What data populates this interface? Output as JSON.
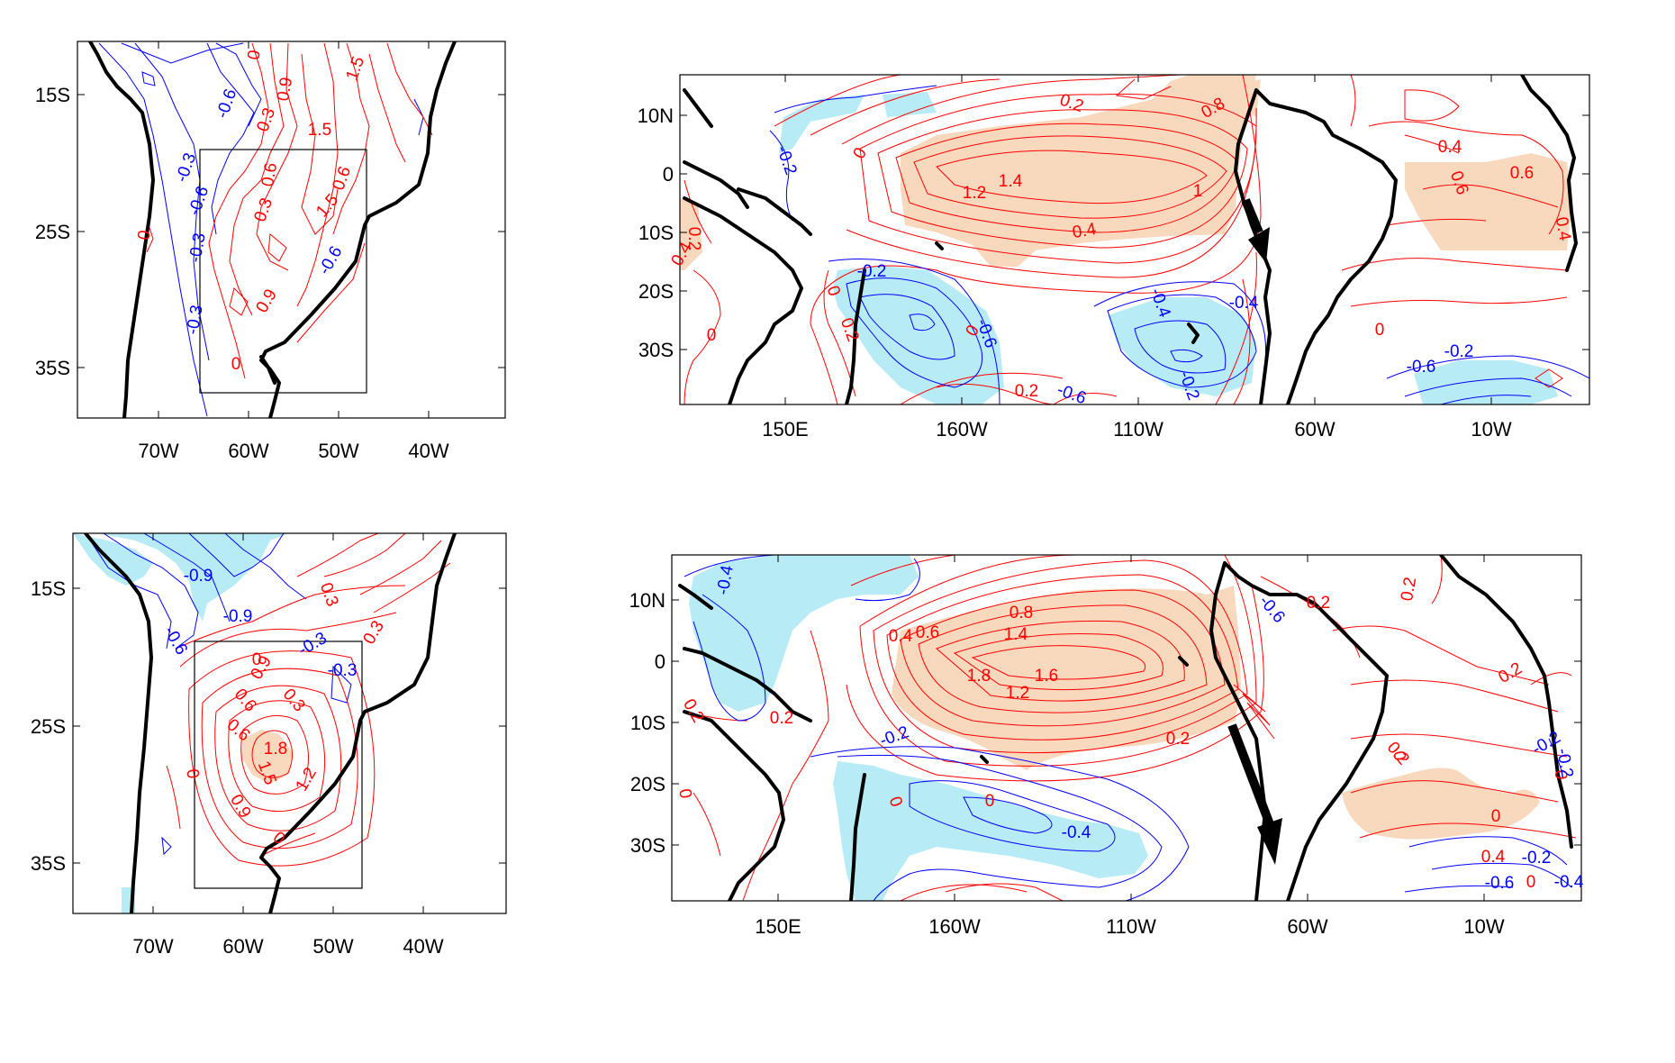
{
  "colors": {
    "positive": "#ff0000",
    "negative": "#0000ff",
    "warm_shade": "#f8d9be",
    "cool_shade": "#b7ecf7",
    "coast": "#000000"
  },
  "panels": [
    {
      "id": "sa-top",
      "ylabels": [
        "15S",
        "25S",
        "35S"
      ],
      "xlabels": [
        "70W",
        "60W",
        "50W",
        "40W"
      ],
      "labels": [
        {
          "text": "-0.6",
          "sign": "neg",
          "rot": -70
        },
        {
          "text": "0",
          "sign": "pos",
          "rot": -80
        },
        {
          "text": "1.5",
          "sign": "pos",
          "rot": -70
        },
        {
          "text": "0.9",
          "sign": "pos",
          "rot": -80
        },
        {
          "text": "-0.3",
          "sign": "neg",
          "rot": -70
        },
        {
          "text": "-0.6",
          "sign": "neg",
          "rot": -70
        },
        {
          "text": "0.3",
          "sign": "pos",
          "rot": -70
        },
        {
          "text": "1.5",
          "sign": "pos",
          "rot": 0
        },
        {
          "text": "0.6",
          "sign": "pos",
          "rot": -80
        },
        {
          "text": "0.3",
          "sign": "pos",
          "rot": -70
        },
        {
          "text": "-0.3",
          "sign": "neg",
          "rot": -80
        },
        {
          "text": "0.6",
          "sign": "pos",
          "rot": -70
        },
        {
          "text": "1.5",
          "sign": "pos",
          "rot": -50
        },
        {
          "text": "0",
          "sign": "pos",
          "rot": -80
        },
        {
          "text": "-0.6",
          "sign": "neg",
          "rot": -60
        },
        {
          "text": "0.9",
          "sign": "pos",
          "rot": -60
        },
        {
          "text": "-0.3",
          "sign": "neg",
          "rot": -80
        },
        {
          "text": "0",
          "sign": "pos",
          "rot": 0
        }
      ]
    },
    {
      "id": "pac-top",
      "ylabels": [
        "10N",
        "0",
        "10S",
        "20S",
        "30S"
      ],
      "xlabels": [
        "150E",
        "160W",
        "110W",
        "60W",
        "10W"
      ],
      "labels": [
        {
          "text": "-0.2",
          "sign": "neg",
          "rot": 70
        },
        {
          "text": "0",
          "sign": "pos",
          "rot": -60
        },
        {
          "text": "0.2",
          "sign": "pos",
          "rot": 20
        },
        {
          "text": "1.2",
          "sign": "pos",
          "rot": 0
        },
        {
          "text": "1.4",
          "sign": "pos",
          "rot": 0
        },
        {
          "text": "1",
          "sign": "pos",
          "rot": 0
        },
        {
          "text": "0.4",
          "sign": "pos",
          "rot": -10
        },
        {
          "text": "0.8",
          "sign": "pos",
          "rot": -30
        },
        {
          "text": "0.4",
          "sign": "pos",
          "rot": 0
        },
        {
          "text": "0.6",
          "sign": "pos",
          "rot": 70
        },
        {
          "text": "0.6",
          "sign": "pos",
          "rot": 0
        },
        {
          "text": "0.4",
          "sign": "pos",
          "rot": 80
        },
        {
          "text": "0.4",
          "sign": "pos",
          "rot": -60
        },
        {
          "text": "0.2",
          "sign": "pos",
          "rot": 90
        },
        {
          "text": "-0.2",
          "sign": "neg",
          "rot": 0
        },
        {
          "text": "0",
          "sign": "pos",
          "rot": 70
        },
        {
          "text": "0.2",
          "sign": "pos",
          "rot": 70
        },
        {
          "text": "0",
          "sign": "pos",
          "rot": -60
        },
        {
          "text": "-0.6",
          "sign": "neg",
          "rot": 70
        },
        {
          "text": "-0.4",
          "sign": "neg",
          "rot": 70
        },
        {
          "text": "-0.4",
          "sign": "neg",
          "rot": 0
        },
        {
          "text": "-0.2",
          "sign": "neg",
          "rot": 70
        },
        {
          "text": "-0.6",
          "sign": "neg",
          "rot": 20
        },
        {
          "text": "0.2",
          "sign": "pos",
          "rot": 0
        },
        {
          "text": "0",
          "sign": "pos",
          "rot": 0
        },
        {
          "text": "0",
          "sign": "pos",
          "rot": 0
        },
        {
          "text": "-0.6",
          "sign": "neg",
          "rot": 0
        },
        {
          "text": "-0.2",
          "sign": "neg",
          "rot": 0
        }
      ]
    },
    {
      "id": "sa-bottom",
      "ylabels": [
        "15S",
        "25S",
        "35S"
      ],
      "xlabels": [
        "70W",
        "60W",
        "50W",
        "40W"
      ],
      "labels": [
        {
          "text": "-0.9",
          "sign": "neg",
          "rot": 0
        },
        {
          "text": "-0.9",
          "sign": "neg",
          "rot": 0
        },
        {
          "text": "0.3",
          "sign": "pos",
          "rot": 70
        },
        {
          "text": "0.3",
          "sign": "pos",
          "rot": -60
        },
        {
          "text": "-0.3",
          "sign": "neg",
          "rot": -30
        },
        {
          "text": "-0.6",
          "sign": "neg",
          "rot": 60
        },
        {
          "text": "0.6",
          "sign": "pos",
          "rot": 50
        },
        {
          "text": "0.9",
          "sign": "pos",
          "rot": -60
        },
        {
          "text": "0",
          "sign": "pos",
          "rot": 0
        },
        {
          "text": "-0.3",
          "sign": "neg",
          "rot": 0
        },
        {
          "text": "0.3",
          "sign": "pos",
          "rot": 50
        },
        {
          "text": "0.6",
          "sign": "pos",
          "rot": 40
        },
        {
          "text": "1.8",
          "sign": "pos",
          "rot": 0
        },
        {
          "text": "1.5",
          "sign": "pos",
          "rot": 70
        },
        {
          "text": "1.2",
          "sign": "pos",
          "rot": -60
        },
        {
          "text": "0.9",
          "sign": "pos",
          "rot": 60
        },
        {
          "text": "0",
          "sign": "pos",
          "rot": 80
        },
        {
          "text": "0",
          "sign": "pos",
          "rot": 40
        }
      ]
    },
    {
      "id": "pac-bottom",
      "ylabels": [
        "10N",
        "0",
        "10S",
        "20S",
        "30S"
      ],
      "xlabels": [
        "150E",
        "160W",
        "110W",
        "60W",
        "10W"
      ],
      "labels": [
        {
          "text": "-0.4",
          "sign": "neg",
          "rot": -80
        },
        {
          "text": "0.4",
          "sign": "pos",
          "rot": 0
        },
        {
          "text": "0.6",
          "sign": "pos",
          "rot": 0
        },
        {
          "text": "0.8",
          "sign": "pos",
          "rot": 0
        },
        {
          "text": "1.4",
          "sign": "pos",
          "rot": 0
        },
        {
          "text": "1.8",
          "sign": "pos",
          "rot": 0
        },
        {
          "text": "1.6",
          "sign": "pos",
          "rot": 0
        },
        {
          "text": "1.2",
          "sign": "pos",
          "rot": 0
        },
        {
          "text": "0.2",
          "sign": "pos",
          "rot": 0
        },
        {
          "text": "0.2",
          "sign": "pos",
          "rot": -80
        },
        {
          "text": "0.2",
          "sign": "pos",
          "rot": -30
        },
        {
          "text": "0.2",
          "sign": "pos",
          "rot": 50
        },
        {
          "text": "0.2",
          "sign": "pos",
          "rot": 0
        },
        {
          "text": "0.2",
          "sign": "pos",
          "rot": 60
        },
        {
          "text": "-0.2",
          "sign": "neg",
          "rot": -20
        },
        {
          "text": "0",
          "sign": "pos",
          "rot": 80
        },
        {
          "text": "0",
          "sign": "pos",
          "rot": 70
        },
        {
          "text": "0",
          "sign": "pos",
          "rot": 0
        },
        {
          "text": "-0.4",
          "sign": "neg",
          "rot": 0
        },
        {
          "text": "-0.6",
          "sign": "neg",
          "rot": 50
        },
        {
          "text": "0.2",
          "sign": "pos",
          "rot": 0
        },
        {
          "text": "0",
          "sign": "pos",
          "rot": 80
        },
        {
          "text": "-0.2",
          "sign": "neg",
          "rot": -30
        },
        {
          "text": "0",
          "sign": "pos",
          "rot": 0
        },
        {
          "text": "0.4",
          "sign": "pos",
          "rot": 0
        },
        {
          "text": "-0.2",
          "sign": "neg",
          "rot": 0
        },
        {
          "text": "0",
          "sign": "pos",
          "rot": 0
        },
        {
          "text": "-0.6",
          "sign": "neg",
          "rot": 0
        },
        {
          "text": "-0.4",
          "sign": "neg",
          "rot": 0
        },
        {
          "text": "0",
          "sign": "pos",
          "rot": 90
        },
        {
          "text": "-0.2",
          "sign": "neg",
          "rot": 80
        }
      ]
    }
  ]
}
